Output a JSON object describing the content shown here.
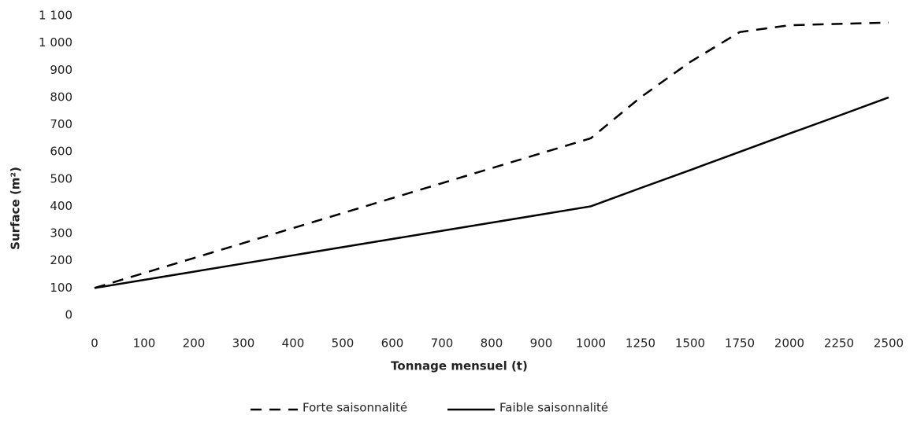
{
  "chart_data": {
    "type": "line",
    "x_label": "Tonnage mensuel (t)",
    "y_label": "Surface (m²)",
    "categories": [
      "0",
      "100",
      "200",
      "300",
      "400",
      "500",
      "600",
      "700",
      "800",
      "900",
      "1000",
      "1250",
      "1500",
      "1750",
      "2000",
      "2250",
      "2500"
    ],
    "series": [
      {
        "name": "Forte saisonnalité",
        "color": "#000000",
        "dash": true,
        "values": [
          100,
          155,
          210,
          265,
          320,
          375,
          430,
          485,
          540,
          595,
          650,
          800,
          930,
          1040,
          1065,
          1070,
          1075
        ]
      },
      {
        "name": "Faible saisonnalité",
        "color": "#000000",
        "dash": false,
        "values": [
          100,
          130,
          160,
          190,
          220,
          250,
          280,
          310,
          340,
          370,
          400,
          467,
          533,
          600,
          667,
          733,
          800
        ]
      }
    ],
    "ylim": [
      0,
      1100
    ],
    "yticks": [
      0,
      100,
      200,
      300,
      400,
      500,
      600,
      700,
      800,
      900,
      {
        "value": 1000,
        "label": "1 000"
      },
      {
        "value": 1100,
        "label": "1 100"
      }
    ],
    "legend": "bottom",
    "grid": false
  }
}
